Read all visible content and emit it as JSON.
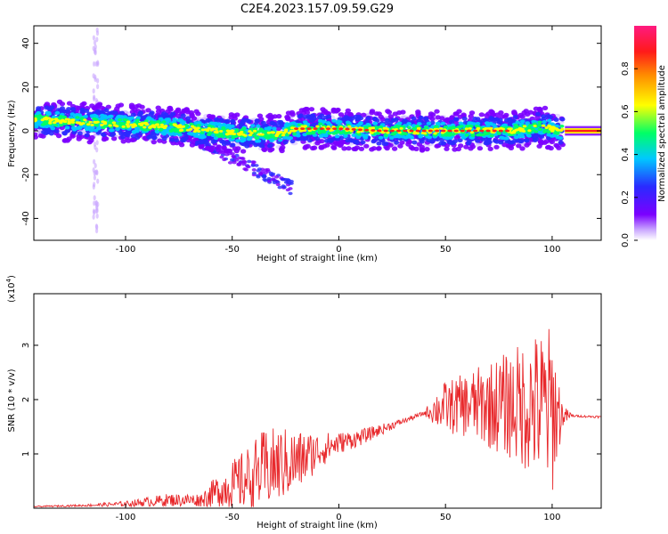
{
  "title": "C2E4.2023.157.09.59.G29",
  "chart_data": [
    {
      "type": "heatmap",
      "title": "C2E4.2023.157.09.59.G29",
      "xlabel": "Height of straight line (km)",
      "ylabel": "Frequency (Hz)",
      "xlim": [
        -143,
        123
      ],
      "ylim": [
        -50,
        48
      ],
      "x_ticks": [
        -100,
        -50,
        0,
        50,
        100
      ],
      "y_ticks": [
        -40,
        -20,
        0,
        20,
        40
      ],
      "colorbar": {
        "label": "Normalized spectral amplitude",
        "range": [
          0.0,
          1.0
        ],
        "ticks": [
          0.0,
          0.2,
          0.4,
          0.6,
          0.8
        ],
        "tick_labels": [
          "0.0",
          "0.2",
          "0.4",
          "0.6",
          "0.8"
        ],
        "colormap": [
          "#7b00ff",
          "#2a2aff",
          "#00c8ff",
          "#00ff66",
          "#ffff00",
          "#ff8c00",
          "#ff1a1a",
          "#ff1a80"
        ]
      },
      "ridge": {
        "x": [
          -140,
          -120,
          -100,
          -80,
          -70,
          -60,
          -50,
          -40,
          -30,
          -20,
          -10,
          0,
          20,
          50,
          80,
          95,
          104,
          110,
          123
        ],
        "y": [
          5,
          4,
          3,
          2,
          1,
          0,
          -1,
          -1,
          -2,
          1,
          1,
          1,
          0,
          0,
          0,
          2,
          0,
          0,
          0
        ]
      },
      "features": [
        {
          "name": "band",
          "x_range": [
            -143,
            105
          ],
          "freq_width": 9
        },
        {
          "name": "diagonal-tail",
          "x_range": [
            -70,
            -22
          ],
          "freq_range": [
            -2,
            -28
          ]
        },
        {
          "name": "vertical-streak",
          "x": -114,
          "freq_range": [
            -50,
            48
          ]
        }
      ]
    },
    {
      "type": "line",
      "xlabel": "Height of straight line (km)",
      "ylabel": "SNR (10 * v/v)",
      "y_exponent_label": "(x10",
      "y_exponent": "4",
      "xlim": [
        -143,
        123
      ],
      "ylim": [
        0,
        3.95
      ],
      "x_ticks": [
        -100,
        -50,
        0,
        50,
        100
      ],
      "y_ticks": [
        1,
        2,
        3
      ],
      "color": "#e8282b",
      "envelope": {
        "x": [
          -143,
          -120,
          -100,
          -80,
          -65,
          -55,
          -45,
          -35,
          -28,
          -20,
          -10,
          0,
          10,
          20,
          30,
          40,
          48,
          60,
          70,
          80,
          90,
          100,
          105,
          110,
          123
        ],
        "base": [
          0.03,
          0.05,
          0.08,
          0.15,
          0.15,
          0.35,
          0.5,
          0.7,
          0.8,
          0.85,
          1.05,
          1.2,
          1.3,
          1.45,
          1.6,
          1.75,
          1.85,
          1.9,
          1.9,
          1.9,
          1.9,
          1.8,
          1.7,
          1.7,
          1.68
        ],
        "amp": [
          0.01,
          0.02,
          0.05,
          0.12,
          0.12,
          0.35,
          0.55,
          0.75,
          0.7,
          0.6,
          0.35,
          0.2,
          0.15,
          0.1,
          0.05,
          0.04,
          0.45,
          0.6,
          0.8,
          1.0,
          1.3,
          1.6,
          0.2,
          0.02,
          0.02
        ]
      }
    }
  ]
}
